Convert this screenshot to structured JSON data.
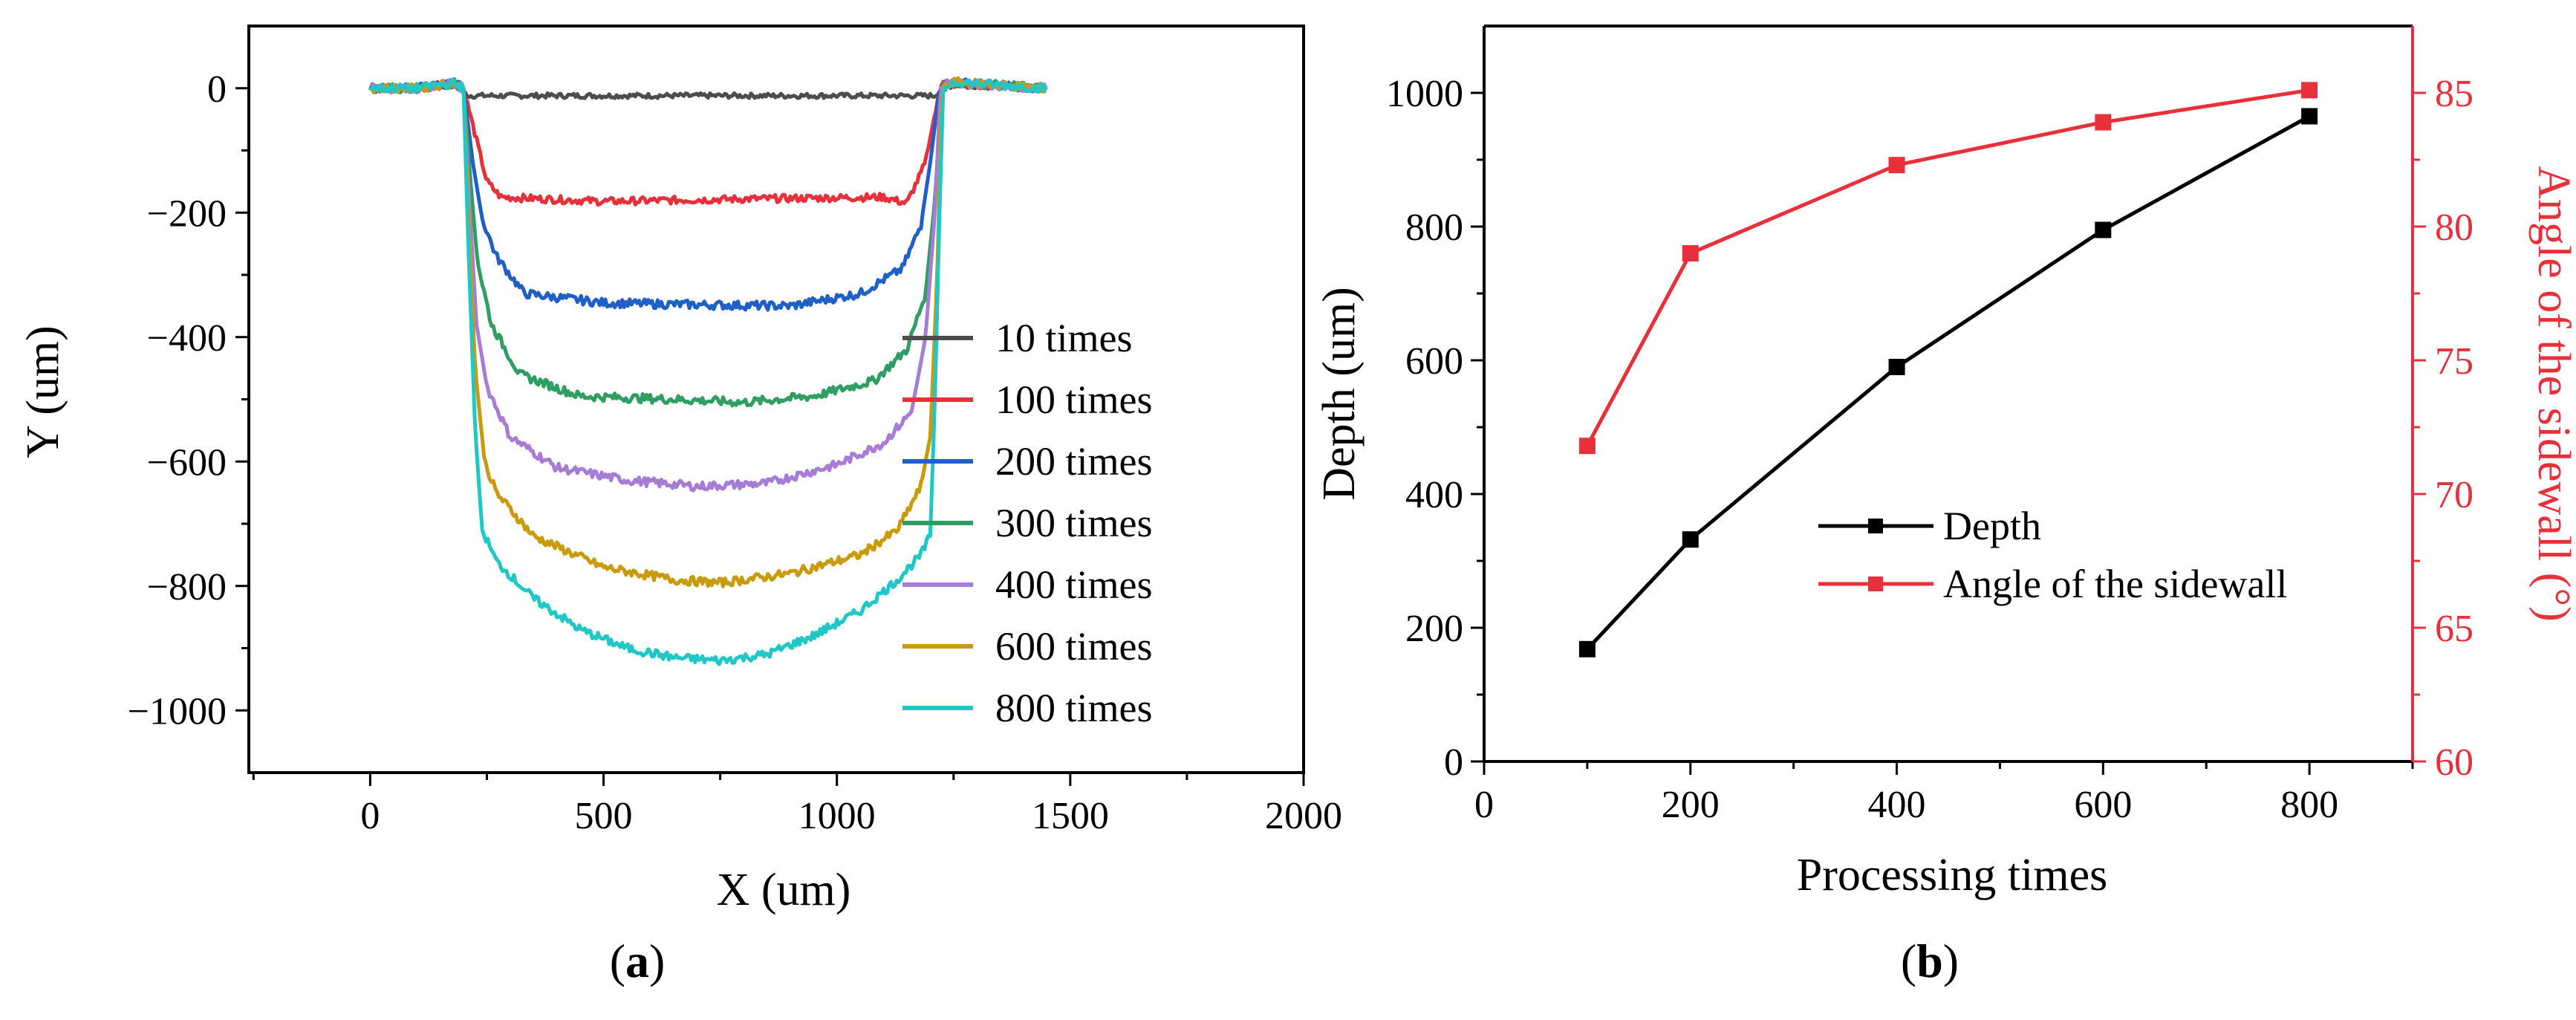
{
  "figure": {
    "panels": [
      {
        "id": "a",
        "label_open": "(",
        "label_letter": "a",
        "label_close": ")",
        "chart_ref": 0
      },
      {
        "id": "b",
        "label_open": "(",
        "label_letter": "b",
        "label_close": ")",
        "chart_ref": 1
      }
    ]
  },
  "chart_data": [
    {
      "type": "line",
      "xlabel": "X (um)",
      "ylabel": "Y (um)",
      "xlim": [
        -260,
        2000
      ],
      "ylim": [
        -1100,
        100
      ],
      "xticks": [
        0,
        500,
        1000,
        1500,
        2000
      ],
      "xtick_labels": [
        "0",
        "500",
        "1000",
        "1500",
        "2000"
      ],
      "yticks": [
        0,
        -200,
        -400,
        -600,
        -800,
        -1000
      ],
      "ytick_labels": [
        "0",
        "−200",
        "−400",
        "−600",
        "−800",
        "−1000"
      ],
      "grid": false,
      "legend_position": "right",
      "series": [
        {
          "name": "10 times",
          "color": "#4d4d4d",
          "depth": 15,
          "edge_left": 190,
          "edge_right": 1225,
          "noise": 4,
          "profile": [
            [
              0,
              0
            ],
            [
              100,
              0
            ],
            [
              170,
              5
            ],
            [
              190,
              0
            ],
            [
              210,
              -12
            ],
            [
              1210,
              -12
            ],
            [
              1225,
              0
            ],
            [
              1250,
              5
            ],
            [
              1450,
              0
            ]
          ]
        },
        {
          "name": "100 times",
          "color": "#e8303a",
          "depth": 180,
          "noise": 6,
          "profile": [
            [
              0,
              0
            ],
            [
              100,
              -2
            ],
            [
              180,
              8
            ],
            [
              200,
              0
            ],
            [
              230,
              -90
            ],
            [
              250,
              -150
            ],
            [
              280,
              -175
            ],
            [
              500,
              -182
            ],
            [
              800,
              -178
            ],
            [
              1100,
              -175
            ],
            [
              1150,
              -185
            ],
            [
              1190,
              -120
            ],
            [
              1210,
              -40
            ],
            [
              1225,
              10
            ],
            [
              1260,
              5
            ],
            [
              1450,
              0
            ]
          ]
        },
        {
          "name": "200 times",
          "color": "#1f5fc8",
          "depth": 350,
          "noise": 7,
          "profile": [
            [
              0,
              0
            ],
            [
              100,
              0
            ],
            [
              180,
              8
            ],
            [
              200,
              0
            ],
            [
              220,
              -120
            ],
            [
              240,
              -210
            ],
            [
              270,
              -270
            ],
            [
              330,
              -330
            ],
            [
              500,
              -345
            ],
            [
              700,
              -348
            ],
            [
              900,
              -350
            ],
            [
              1050,
              -330
            ],
            [
              1140,
              -290
            ],
            [
              1180,
              -220
            ],
            [
              1200,
              -120
            ],
            [
              1220,
              0
            ],
            [
              1240,
              10
            ],
            [
              1450,
              0
            ]
          ]
        },
        {
          "name": "300 times",
          "color": "#2e9e62",
          "depth": 500,
          "noise": 7,
          "profile": [
            [
              0,
              0
            ],
            [
              100,
              0
            ],
            [
              180,
              8
            ],
            [
              200,
              0
            ],
            [
              215,
              -150
            ],
            [
              230,
              -280
            ],
            [
              260,
              -380
            ],
            [
              320,
              -460
            ],
            [
              450,
              -495
            ],
            [
              650,
              -500
            ],
            [
              800,
              -505
            ],
            [
              950,
              -495
            ],
            [
              1080,
              -470
            ],
            [
              1150,
              -420
            ],
            [
              1190,
              -330
            ],
            [
              1210,
              -180
            ],
            [
              1225,
              0
            ],
            [
              1245,
              10
            ],
            [
              1450,
              0
            ]
          ]
        },
        {
          "name": "400 times",
          "color": "#a67cd6",
          "depth": 640,
          "noise": 7,
          "profile": [
            [
              0,
              0
            ],
            [
              100,
              0
            ],
            [
              180,
              8
            ],
            [
              200,
              0
            ],
            [
              212,
              -180
            ],
            [
              228,
              -380
            ],
            [
              250,
              -480
            ],
            [
              300,
              -560
            ],
            [
              400,
              -610
            ],
            [
              550,
              -630
            ],
            [
              700,
              -640
            ],
            [
              850,
              -635
            ],
            [
              1000,
              -605
            ],
            [
              1100,
              -570
            ],
            [
              1160,
              -520
            ],
            [
              1190,
              -400
            ],
            [
              1210,
              -200
            ],
            [
              1222,
              0
            ],
            [
              1240,
              10
            ],
            [
              1450,
              0
            ]
          ]
        },
        {
          "name": "600 times",
          "color": "#c99a0a",
          "depth": 800,
          "noise": 7,
          "profile": [
            [
              0,
              0
            ],
            [
              100,
              0
            ],
            [
              180,
              8
            ],
            [
              200,
              0
            ],
            [
              210,
              -200
            ],
            [
              225,
              -450
            ],
            [
              245,
              -600
            ],
            [
              270,
              -650
            ],
            [
              350,
              -720
            ],
            [
              500,
              -770
            ],
            [
              650,
              -790
            ],
            [
              750,
              -795
            ],
            [
              900,
              -780
            ],
            [
              1050,
              -750
            ],
            [
              1130,
              -710
            ],
            [
              1180,
              -640
            ],
            [
              1200,
              -560
            ],
            [
              1215,
              -300
            ],
            [
              1225,
              0
            ],
            [
              1245,
              10
            ],
            [
              1450,
              0
            ]
          ]
        },
        {
          "name": "800 times",
          "color": "#1fc7c7",
          "depth": 920,
          "noise": 7,
          "profile": [
            [
              0,
              0
            ],
            [
              100,
              0
            ],
            [
              180,
              8
            ],
            [
              200,
              0
            ],
            [
              210,
              -250
            ],
            [
              225,
              -550
            ],
            [
              240,
              -710
            ],
            [
              270,
              -760
            ],
            [
              350,
              -820
            ],
            [
              450,
              -870
            ],
            [
              550,
              -900
            ],
            [
              650,
              -915
            ],
            [
              750,
              -920
            ],
            [
              850,
              -910
            ],
            [
              950,
              -880
            ],
            [
              1050,
              -840
            ],
            [
              1130,
              -790
            ],
            [
              1180,
              -750
            ],
            [
              1200,
              -720
            ],
            [
              1210,
              -500
            ],
            [
              1220,
              -200
            ],
            [
              1228,
              0
            ],
            [
              1250,
              10
            ],
            [
              1450,
              0
            ]
          ]
        }
      ]
    },
    {
      "type": "line",
      "xlabel": "Processing times",
      "ylabel": "Depth (um)",
      "y2label": "Angle of the sidewall (°)",
      "xlim": [
        0,
        900
      ],
      "ylim": [
        0,
        1100
      ],
      "y2lim": [
        60,
        87.5
      ],
      "xticks": [
        0,
        200,
        400,
        600,
        800
      ],
      "xtick_labels": [
        "0",
        "200",
        "400",
        "600",
        "800"
      ],
      "yticks": [
        0,
        200,
        400,
        600,
        800,
        1000
      ],
      "ytick_labels": [
        "0",
        "200",
        "400",
        "600",
        "800",
        "1000"
      ],
      "y2ticks": [
        60,
        65,
        70,
        75,
        80,
        85
      ],
      "y2tick_labels": [
        "60",
        "65",
        "70",
        "75",
        "80",
        "85"
      ],
      "grid": false,
      "legend_position": "center-right",
      "x": [
        100,
        200,
        400,
        600,
        800
      ],
      "series": [
        {
          "name": "Depth",
          "axis": "left",
          "color": "#000000",
          "values": [
            168,
            332,
            590,
            795,
            965
          ]
        },
        {
          "name": "Angle of the sidewall",
          "axis": "right",
          "color": "#e8303a",
          "values": [
            71.8,
            79.0,
            82.3,
            83.9,
            85.1
          ]
        }
      ]
    }
  ]
}
